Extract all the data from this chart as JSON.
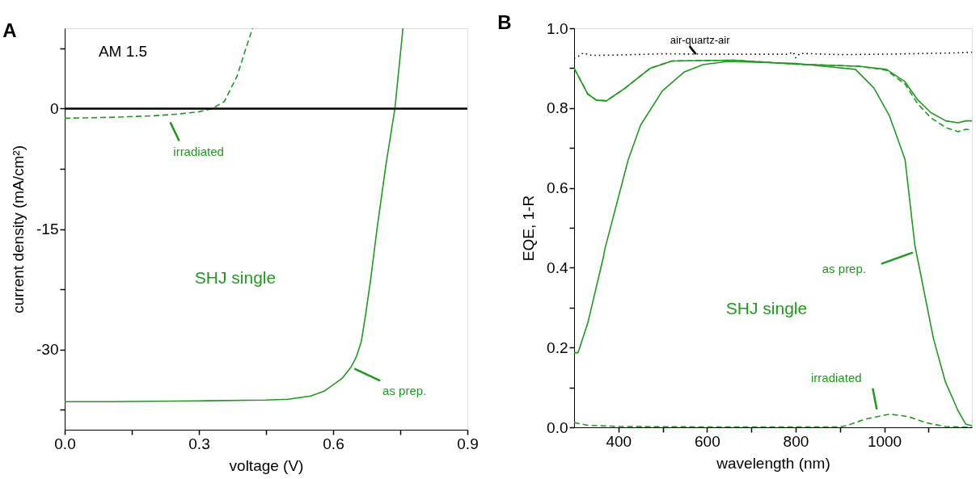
{
  "chart_data": [
    {
      "type": "line",
      "xlabel": "voltage (V)",
      "ylabel": "current density (mA/cm²)",
      "xlim": [
        0,
        0.9
      ],
      "ylim": [
        -40,
        10
      ],
      "xticks": [
        {
          "value": 0,
          "label": "0.0"
        },
        {
          "value": 0.15,
          "label": null
        },
        0.3,
        {
          "value": 0.45,
          "label": null
        },
        0.6,
        {
          "value": 0.75,
          "label": null
        },
        0.9
      ],
      "yticks": [
        {
          "value": 7.5,
          "label": null
        },
        0,
        {
          "value": -7.5,
          "label": null
        },
        -15,
        {
          "value": -22.5,
          "label": null
        },
        -30,
        {
          "value": -37.5,
          "label": null
        }
      ],
      "grid": false,
      "legend": false,
      "series": [
        {
          "color": "#1f9a1f",
          "line_style": "solid",
          "x": [
            0,
            0.1,
            0.3,
            0.45,
            0.5,
            0.55,
            0.58,
            0.6,
            0.62,
            0.64,
            0.652,
            0.663,
            0.673,
            0.684,
            0.698,
            0.718,
            0.738,
            0.756
          ],
          "values": [
            -36.5,
            -36.5,
            -36.4,
            -36.3,
            -36.2,
            -35.8,
            -35.2,
            -34.4,
            -33.6,
            -32.2,
            -30.9,
            -29.0,
            -25.5,
            -21.2,
            -15.0,
            -7.0,
            0,
            10
          ]
        },
        {
          "color": "#1f9a1f",
          "line_style": "dashed",
          "x": [
            0,
            0.1,
            0.2,
            0.25,
            0.3,
            0.33,
            0.357,
            0.385,
            0.405,
            0.42
          ],
          "values": [
            -1.2,
            -1.1,
            -0.9,
            -0.7,
            -0.4,
            0,
            0.9,
            4.0,
            7.5,
            10
          ]
        }
      ],
      "ref_lines": [
        {
          "axis": "y",
          "value": 0,
          "color": "#000000"
        }
      ],
      "annotations": [
        "A",
        "AM 1.5",
        {
          "text": "irradiated",
          "x": 0.245,
          "y": -0.7
        },
        "SHJ single",
        {
          "text": "as prep.",
          "x": 0.64,
          "y": -32.2
        }
      ]
    },
    {
      "type": "line",
      "xlabel": "wavelength (nm)",
      "ylabel": "EQE, 1-R",
      "xlim": [
        300,
        1198
      ],
      "ylim": [
        0,
        1
      ],
      "xticks": [
        400,
        {
          "value": 500,
          "label": null
        },
        600,
        {
          "value": 700,
          "label": null
        },
        800,
        {
          "value": 900,
          "label": null
        },
        1000,
        {
          "value": 1100,
          "label": null
        }
      ],
      "yticks": [
        {
          "value": 0,
          "label": "0.0"
        },
        {
          "value": 0.1,
          "label": null
        },
        0.2,
        {
          "value": 0.3,
          "label": null
        },
        0.4,
        {
          "value": 0.5,
          "label": null
        },
        0.6,
        {
          "value": 0.7,
          "label": null
        },
        0.8,
        {
          "value": 0.9,
          "label": null
        },
        {
          "value": 1.0,
          "label": "1.0"
        }
      ],
      "grid": false,
      "legend": false,
      "series": [
        {
          "color": "#000000",
          "line_style": "dotted",
          "x": [
            300,
            310,
            320,
            340,
            400,
            500,
            600,
            700,
            780,
            795,
            800,
            810,
            900,
            1000,
            1100,
            1150,
            1198
          ],
          "values": [
            0.925,
            0.93,
            0.938,
            0.932,
            0.933,
            0.936,
            0.935,
            0.935,
            0.935,
            0.94,
            0.926,
            0.937,
            0.934,
            0.935,
            0.937,
            0.938,
            0.94
          ]
        },
        {
          "color": "#1f9a1f",
          "line_style": "solid",
          "x": [
            300,
            331,
            350,
            373,
            415,
            472,
            521,
            661,
            802,
            942,
            1005,
            1047,
            1076,
            1105,
            1139,
            1167,
            1184,
            1198
          ],
          "values": [
            0.9,
            0.835,
            0.82,
            0.818,
            0.85,
            0.9,
            0.918,
            0.92,
            0.91,
            0.905,
            0.897,
            0.866,
            0.82,
            0.789,
            0.768,
            0.763,
            0.768,
            0.768
          ]
        },
        {
          "color": "#1f9a1f",
          "line_style": "dashed",
          "x": [
            300,
            331,
            350,
            373,
            415,
            472,
            521,
            661,
            802,
            942,
            1005,
            1047,
            1076,
            1105,
            1139,
            1167,
            1184,
            1198
          ],
          "values": [
            0.9,
            0.835,
            0.82,
            0.818,
            0.85,
            0.9,
            0.918,
            0.92,
            0.91,
            0.905,
            0.895,
            0.86,
            0.81,
            0.776,
            0.751,
            0.741,
            0.747,
            0.745
          ]
        },
        {
          "color": "#1f9a1f",
          "line_style": "solid",
          "x": [
            300,
            309,
            331,
            366,
            369,
            422,
            450,
            499,
            548,
            591,
            647,
            800,
            935,
            977,
            1012,
            1047,
            1069,
            1083,
            1111,
            1138,
            1166,
            1184,
            1198
          ],
          "values": [
            0.187,
            0.187,
            0.262,
            0.426,
            0.445,
            0.67,
            0.757,
            0.843,
            0.89,
            0.909,
            0.917,
            0.912,
            0.897,
            0.85,
            0.78,
            0.671,
            0.457,
            0.379,
            0.223,
            0.114,
            0.043,
            0.008,
            0.004
          ]
        },
        {
          "color": "#1f9a1f",
          "line_style": "dashed",
          "x": [
            300,
            331,
            400,
            600,
            800,
            900,
            914,
            956,
            1012,
            1054,
            1096,
            1138,
            1198
          ],
          "values": [
            0.012,
            0.005,
            0.002,
            0.001,
            0.001,
            0.001,
            0.004,
            0.02,
            0.033,
            0.027,
            0.011,
            0.002,
            0.0
          ]
        }
      ],
      "annotations": [
        "B",
        {
          "text": "air-quartz-air",
          "x": 575,
          "y": 0.935
        },
        {
          "text": "as prep.",
          "x": 1070,
          "y": 0.44
        },
        "SHJ single",
        {
          "text": "irradiated",
          "x": 985,
          "y": 0.031
        }
      ]
    }
  ]
}
